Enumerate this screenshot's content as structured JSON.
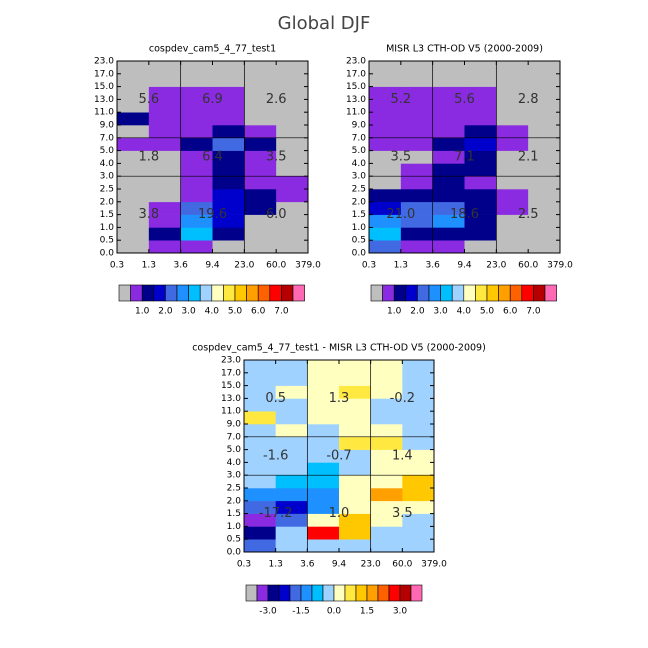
{
  "title": "Global DJF",
  "chart_data": [
    {
      "type": "heatmap",
      "title": "cospdev_cam5_4_77_test1",
      "x_edges": [
        0.3,
        1.3,
        3.6,
        9.4,
        {
          "value": 23,
          "label": "23.0"
        },
        {
          "value": 60,
          "label": "60.0"
        },
        {
          "value": 379,
          "label": "379.0"
        }
      ],
      "y_edges": [
        {
          "value": 0,
          "label": "0.0"
        },
        0.5,
        {
          "value": 1,
          "label": "1.0"
        },
        1.5,
        {
          "value": 2,
          "label": "2.0"
        },
        2.5,
        {
          "value": 3,
          "label": "3.0"
        },
        {
          "value": 4,
          "label": "4.0"
        },
        {
          "value": 5,
          "label": "5.0"
        },
        {
          "value": 7,
          "label": "7.0"
        },
        {
          "value": 9,
          "label": "9.0"
        },
        {
          "value": 11,
          "label": "11.0"
        },
        {
          "value": 13,
          "label": "13.0"
        },
        {
          "value": 15,
          "label": "15.0"
        },
        {
          "value": 17,
          "label": "17.0"
        },
        {
          "value": 23,
          "label": "23.0"
        }
      ],
      "z": [
        [
          0.2,
          0.8,
          0.8,
          0.2,
          0.2,
          0.2
        ],
        [
          0.2,
          1.2,
          3.2,
          1.2,
          0.2,
          0.2
        ],
        [
          0.2,
          0.8,
          2.8,
          1.8,
          0.2,
          0.2
        ],
        [
          0.2,
          0.8,
          2.2,
          1.8,
          1.2,
          0.2
        ],
        [
          0.2,
          0.2,
          0.8,
          1.8,
          1.2,
          0.8
        ],
        [
          0.2,
          0.2,
          0.8,
          1.2,
          0.8,
          0.8
        ],
        [
          0.2,
          0.2,
          0.8,
          1.2,
          0.8,
          0.2
        ],
        [
          0.2,
          0.2,
          0.8,
          1.2,
          0.8,
          0.2
        ],
        [
          0.8,
          0.8,
          1.2,
          2.2,
          1.2,
          0.2
        ],
        [
          0.2,
          0.8,
          0.8,
          1.2,
          0.8,
          0.2
        ],
        [
          1.2,
          0.8,
          0.8,
          0.8,
          0.2,
          0.2
        ],
        [
          0.2,
          0.8,
          0.8,
          0.8,
          0.2,
          0.2
        ],
        [
          0.2,
          0.8,
          0.8,
          0.8,
          0.2,
          0.2
        ],
        [
          0.2,
          0.2,
          0.2,
          0.2,
          0.2,
          0.2
        ],
        [
          0.2,
          0.2,
          0.2,
          0.2,
          0.2,
          0.2
        ]
      ],
      "region_values": [
        [
          5.6,
          6.9,
          2.6
        ],
        [
          1.8,
          6.4,
          3.5
        ],
        [
          3.8,
          19.6,
          6.0
        ]
      ],
      "region_labels": [
        [
          "5.6",
          "6.9",
          "2.6"
        ],
        [
          "1.8",
          "6.4",
          "3.5"
        ],
        [
          "3.8",
          "19.6",
          "6.0"
        ]
      ],
      "levels": [
        0.5,
        1,
        1.5,
        2,
        2.5,
        3,
        3.5,
        4,
        4.5,
        5,
        5.5,
        6,
        6.5,
        7,
        7.5
      ],
      "colors": [
        "#bebebe",
        "#8a2be2",
        "#00008b",
        "#0000cd",
        "#4169e1",
        "#1e90ff",
        "#00bfff",
        "#a0d2ff",
        "#ffffc0",
        "#ffe840",
        "#ffc800",
        "#ffa000",
        "#ff6000",
        "#ff0000",
        "#b40000",
        "#ff69b4"
      ],
      "colorbar_ticks": [
        {
          "value": 1,
          "label": "1.0"
        },
        {
          "value": 2,
          "label": "2.0"
        },
        {
          "value": 3,
          "label": "3.0"
        },
        {
          "value": 4,
          "label": "4.0"
        },
        {
          "value": 5,
          "label": "5.0"
        },
        {
          "value": 6,
          "label": "6.0"
        },
        {
          "value": 7,
          "label": "7.0"
        }
      ]
    },
    {
      "type": "heatmap",
      "title": "MISR L3 CTH-OD V5 (2000-2009)",
      "x_edges": [
        0.3,
        1.3,
        3.6,
        9.4,
        {
          "value": 23,
          "label": "23.0"
        },
        {
          "value": 60,
          "label": "60.0"
        },
        {
          "value": 379,
          "label": "379.0"
        }
      ],
      "y_edges": [
        {
          "value": 0,
          "label": "0.0"
        },
        0.5,
        {
          "value": 1,
          "label": "1.0"
        },
        1.5,
        {
          "value": 2,
          "label": "2.0"
        },
        2.5,
        {
          "value": 3,
          "label": "3.0"
        },
        {
          "value": 4,
          "label": "4.0"
        },
        {
          "value": 5,
          "label": "5.0"
        },
        {
          "value": 7,
          "label": "7.0"
        },
        {
          "value": 9,
          "label": "9.0"
        },
        {
          "value": 11,
          "label": "11.0"
        },
        {
          "value": 13,
          "label": "13.0"
        },
        {
          "value": 15,
          "label": "15.0"
        },
        {
          "value": 17,
          "label": "17.0"
        },
        {
          "value": 23,
          "label": "23.0"
        }
      ],
      "z": [
        [
          2.2,
          0.8,
          0.8,
          0.2,
          0.2,
          0.2
        ],
        [
          3.2,
          1.2,
          1.2,
          1.2,
          0.2,
          0.2
        ],
        [
          2.8,
          2.2,
          2.8,
          1.2,
          0.2,
          0.2
        ],
        [
          1.8,
          2.2,
          2.2,
          1.2,
          0.8,
          0.2
        ],
        [
          1.2,
          1.2,
          1.2,
          1.2,
          0.8,
          0.2
        ],
        [
          0.2,
          0.8,
          1.2,
          0.8,
          0.2,
          0.2
        ],
        [
          0.2,
          0.8,
          1.2,
          1.2,
          0.2,
          0.2
        ],
        [
          0.2,
          0.2,
          0.8,
          1.2,
          0.2,
          0.2
        ],
        [
          0.8,
          0.8,
          1.2,
          1.8,
          0.8,
          0.2
        ],
        [
          0.8,
          0.8,
          0.8,
          1.2,
          0.8,
          0.2
        ],
        [
          0.8,
          0.8,
          0.8,
          0.8,
          0.2,
          0.2
        ],
        [
          0.8,
          0.8,
          0.8,
          0.8,
          0.2,
          0.2
        ],
        [
          0.8,
          0.8,
          0.8,
          0.8,
          0.2,
          0.2
        ],
        [
          0.2,
          0.2,
          0.2,
          0.2,
          0.2,
          0.2
        ],
        [
          0.2,
          0.2,
          0.2,
          0.2,
          0.2,
          0.2
        ]
      ],
      "region_values": [
        [
          5.2,
          5.6,
          2.8
        ],
        [
          3.5,
          7.1,
          2.1
        ],
        [
          21.0,
          18.6,
          2.5
        ]
      ],
      "region_labels": [
        [
          "5.2",
          "5.6",
          "2.8"
        ],
        [
          "3.5",
          "7.1",
          "2.1"
        ],
        [
          "21.0",
          "18.6",
          "2.5"
        ]
      ],
      "levels": [
        0.5,
        1,
        1.5,
        2,
        2.5,
        3,
        3.5,
        4,
        4.5,
        5,
        5.5,
        6,
        6.5,
        7,
        7.5
      ],
      "colors": [
        "#bebebe",
        "#8a2be2",
        "#00008b",
        "#0000cd",
        "#4169e1",
        "#1e90ff",
        "#00bfff",
        "#a0d2ff",
        "#ffffc0",
        "#ffe840",
        "#ffc800",
        "#ffa000",
        "#ff6000",
        "#ff0000",
        "#b40000",
        "#ff69b4"
      ],
      "colorbar_ticks": [
        {
          "value": 1,
          "label": "1.0"
        },
        {
          "value": 2,
          "label": "2.0"
        },
        {
          "value": 3,
          "label": "3.0"
        },
        {
          "value": 4,
          "label": "4.0"
        },
        {
          "value": 5,
          "label": "5.0"
        },
        {
          "value": 6,
          "label": "6.0"
        },
        {
          "value": 7,
          "label": "7.0"
        }
      ]
    },
    {
      "type": "heatmap",
      "title": "cospdev_cam5_4_77_test1 - MISR L3 CTH-OD V5 (2000-2009)",
      "x_edges": [
        0.3,
        1.3,
        3.6,
        9.4,
        {
          "value": 23,
          "label": "23.0"
        },
        {
          "value": 60,
          "label": "60.0"
        },
        {
          "value": 379,
          "label": "379.0"
        }
      ],
      "y_edges": [
        {
          "value": 0,
          "label": "0.0"
        },
        0.5,
        {
          "value": 1,
          "label": "1.0"
        },
        1.5,
        {
          "value": 2,
          "label": "2.0"
        },
        2.5,
        {
          "value": 3,
          "label": "3.0"
        },
        {
          "value": 4,
          "label": "4.0"
        },
        {
          "value": 5,
          "label": "5.0"
        },
        {
          "value": 7,
          "label": "7.0"
        },
        {
          "value": 9,
          "label": "9.0"
        },
        {
          "value": 11,
          "label": "11.0"
        },
        {
          "value": 13,
          "label": "13.0"
        },
        {
          "value": 15,
          "label": "15.0"
        },
        {
          "value": 17,
          "label": "17.0"
        },
        {
          "value": 23,
          "label": "23.0"
        }
      ],
      "z": [
        [
          -1.7,
          -0.2,
          -0.2,
          -0.2,
          -0.2,
          -0.2
        ],
        [
          -2.7,
          -0.2,
          2.7,
          1.2,
          -0.2,
          -0.2
        ],
        [
          -3.2,
          -1.7,
          0.2,
          1.2,
          0.2,
          -0.2
        ],
        [
          -1.7,
          -2.2,
          -1.2,
          0.2,
          0.2,
          0.2
        ],
        [
          -1.2,
          -1.2,
          -1.2,
          0.2,
          1.7,
          1.2
        ],
        [
          -0.2,
          -0.7,
          -0.7,
          0.2,
          0.2,
          1.2
        ],
        [
          -0.2,
          -0.2,
          -0.7,
          -0.2,
          0.2,
          0.2
        ],
        [
          -0.2,
          -0.2,
          -0.2,
          -0.2,
          0.2,
          0.2
        ],
        [
          -0.2,
          -0.2,
          -0.2,
          0.7,
          0.7,
          -0.2
        ],
        [
          -0.2,
          0.2,
          -0.2,
          0.2,
          0.2,
          -0.2
        ],
        [
          0.7,
          -0.2,
          0.2,
          0.2,
          -0.2,
          -0.2
        ],
        [
          -0.2,
          -0.2,
          0.2,
          0.2,
          -0.2,
          -0.2
        ],
        [
          -0.2,
          0.2,
          0.2,
          0.7,
          0.2,
          -0.2
        ],
        [
          -0.2,
          -0.2,
          0.2,
          0.2,
          0.2,
          -0.2
        ],
        [
          -0.2,
          -0.2,
          0.2,
          0.2,
          0.2,
          -0.2
        ]
      ],
      "region_values": [
        [
          0.5,
          1.3,
          -0.2
        ],
        [
          -1.6,
          -0.7,
          1.4
        ],
        [
          -17.2,
          1.0,
          3.5
        ]
      ],
      "region_labels": [
        [
          "0.5",
          "1.3",
          "-0.2"
        ],
        [
          "-1.6",
          "-0.7",
          "1.4"
        ],
        [
          "-17.2",
          "1.0",
          "3.5"
        ]
      ],
      "levels": [
        -3.5,
        -3,
        -2.5,
        -2,
        -1.5,
        -1,
        -0.5,
        0,
        0.5,
        1,
        1.5,
        2,
        2.5,
        3,
        3.5
      ],
      "colors": [
        "#bebebe",
        "#8a2be2",
        "#00008b",
        "#0000cd",
        "#4169e1",
        "#1e90ff",
        "#00bfff",
        "#a0d2ff",
        "#ffffc0",
        "#ffe840",
        "#ffc800",
        "#ffa000",
        "#ff6000",
        "#ff0000",
        "#b40000",
        "#ff69b4"
      ],
      "colorbar_ticks": [
        {
          "value": -3,
          "label": "-3.0"
        },
        {
          "value": -1.5,
          "label": "-1.5"
        },
        {
          "value": 0,
          "label": "0.0"
        },
        {
          "value": 1.5,
          "label": "1.5"
        },
        {
          "value": 3,
          "label": "3.0"
        }
      ]
    }
  ]
}
